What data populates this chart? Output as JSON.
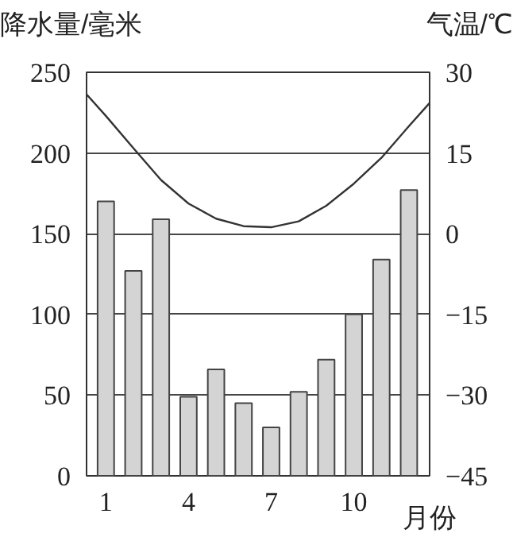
{
  "chart_data": {
    "type": "bar",
    "ylabel": "降水量/毫米",
    "y2label": "气温/℃",
    "xlabel": "月份",
    "x": [
      1,
      2,
      3,
      4,
      5,
      6,
      7,
      8,
      9,
      10,
      11,
      12
    ],
    "xlim": [
      0.3,
      12.75
    ],
    "xticks": [
      1,
      4,
      7,
      10
    ],
    "ylim": [
      0,
      250
    ],
    "yticks": [
      0,
      50,
      100,
      150,
      200,
      250
    ],
    "y2lim": [
      -45,
      30
    ],
    "y2ticks": [
      {
        "value": -45,
        "label": "−45"
      },
      {
        "value": -30,
        "label": "−30"
      },
      {
        "value": -15,
        "label": "−15"
      },
      0,
      15,
      30
    ],
    "grid": "y",
    "series": [
      {
        "color": "#d4d4d4",
        "values": [
          170,
          127,
          159,
          49,
          66,
          45,
          30,
          52,
          72,
          100,
          134,
          177
        ]
      },
      {
        "type": "line",
        "axis": "y2",
        "color": "#333333",
        "x": [
          0.3,
          1,
          2,
          3,
          4,
          5,
          6,
          7,
          8,
          9,
          10,
          11,
          12,
          12.75
        ],
        "values": [
          25.9,
          21.9,
          15.9,
          10,
          5.6,
          2.8,
          1.4,
          1.2,
          2.3,
          5.2,
          9.3,
          14.1,
          20,
          24.3
        ]
      }
    ]
  }
}
